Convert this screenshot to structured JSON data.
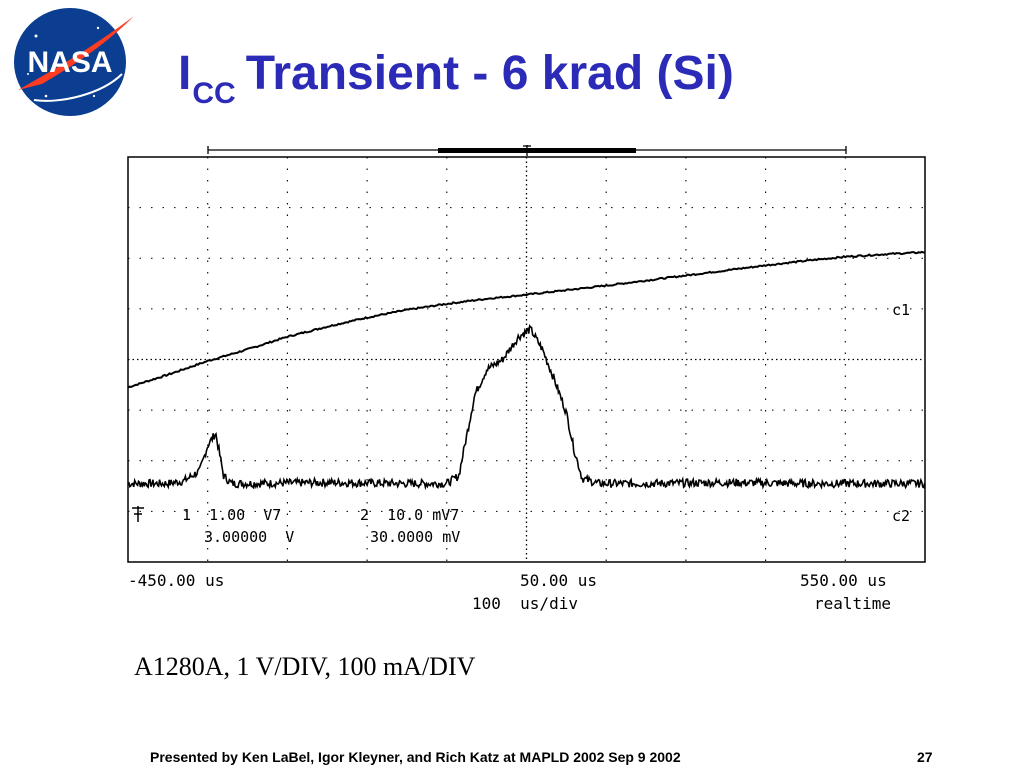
{
  "header": {
    "logo_text": "NASA",
    "title_main": "I",
    "title_sub": "CC",
    "title_rest": "Transient - 6 krad (Si)"
  },
  "scope": {
    "channel1_settings": "1  1.00  V7",
    "channel2_settings": "2  10.0 mV7",
    "channel1_offset": "3.00000  V",
    "channel2_offset": "30.0000 mV",
    "trace1_label": "c1",
    "trace2_label": "c2",
    "time_left": "-450.00 us",
    "time_center": "50.00 us",
    "time_right": "550.00 us",
    "timebase": "100  us/div",
    "acq_mode": "realtime"
  },
  "chart_data": {
    "type": "line",
    "grid": true,
    "xlim": [
      -450,
      550
    ],
    "x_unit": "us",
    "divisions": {
      "x": 10,
      "y": 8
    },
    "series": [
      {
        "name": "c1",
        "x": [
          -450,
          -400,
          -350,
          -300,
          -250,
          -200,
          -150,
          -100,
          -50,
          0,
          50,
          100,
          150,
          200,
          250,
          300,
          350,
          400,
          450,
          500,
          550
        ],
        "y_div": [
          3.45,
          3.7,
          3.97,
          4.2,
          4.45,
          4.65,
          4.83,
          4.98,
          5.1,
          5.2,
          5.28,
          5.37,
          5.46,
          5.56,
          5.66,
          5.76,
          5.86,
          5.95,
          6.03,
          6.08,
          6.12
        ]
      },
      {
        "name": "c2",
        "x": [
          -450,
          -400,
          -380,
          -360,
          -350,
          -340,
          -330,
          -320,
          -300,
          -200,
          -100,
          -50,
          -35,
          -25,
          -15,
          0,
          20,
          40,
          55,
          70,
          85,
          100,
          110,
          120,
          140,
          200,
          300,
          400,
          500,
          550
        ],
        "y_div": [
          1.55,
          1.55,
          1.6,
          1.8,
          2.3,
          2.55,
          1.7,
          1.55,
          1.55,
          1.57,
          1.55,
          1.55,
          1.7,
          2.5,
          3.3,
          3.8,
          4.0,
          4.45,
          4.6,
          4.2,
          3.6,
          2.95,
          2.2,
          1.65,
          1.55,
          1.55,
          1.57,
          1.55,
          1.55,
          1.55
        ]
      }
    ]
  },
  "caption": "A1280A, 1 V/DIV, 100 mA/DIV",
  "footer": {
    "text": "Presented by Ken LaBel, Igor Kleyner, and Rich Katz at MAPLD 2002 Sep 9 2002",
    "page_number": "27"
  },
  "colors": {
    "title": "#2b2bb8",
    "logo_blue": "#0b3d91",
    "logo_red": "#fc3d21",
    "trace": "#000000",
    "grid": "#000000"
  }
}
